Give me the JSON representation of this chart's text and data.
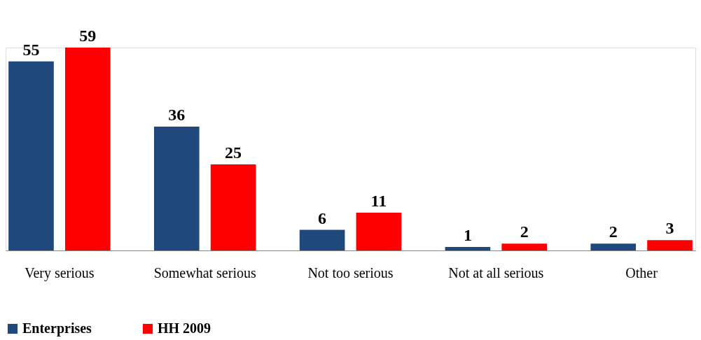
{
  "chart_data": {
    "type": "bar",
    "categories": [
      "Very serious",
      "Somewhat serious",
      "Not too serious",
      "Not at all serious",
      "Other"
    ],
    "series": [
      {
        "name": "Enterprises",
        "color": "#1f497d",
        "values": [
          55,
          36,
          6,
          1,
          2
        ]
      },
      {
        "name": "HH 2009",
        "color": "#ff0000",
        "values": [
          59,
          25,
          11,
          2,
          3
        ]
      }
    ],
    "data_labels": true,
    "legend": "bottom",
    "grid": false
  }
}
